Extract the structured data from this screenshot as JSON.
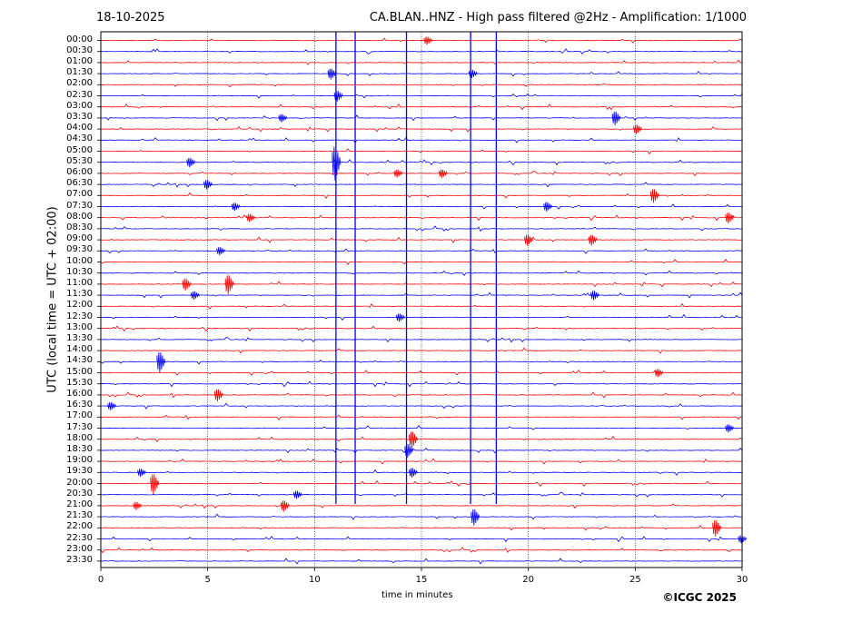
{
  "header": {
    "date": "18-10-2025",
    "title": "CA.BLAN..HNZ - High pass filtered @2Hz - Amplification: 1/1000"
  },
  "footer": {
    "credit": "©ICGC 2025"
  },
  "chart_data": {
    "type": "line",
    "title": "CA.BLAN..HNZ - High pass filtered @2Hz - Amplification: 1/1000",
    "xlabel": "time in minutes",
    "ylabel": "UTC (local time = UTC + 02:00)",
    "xlim": [
      0,
      30
    ],
    "xticks": [
      0,
      5,
      10,
      15,
      20,
      25,
      30
    ],
    "grid_x": [
      5,
      10,
      15,
      20,
      25
    ],
    "yticks": [
      "00:00",
      "00:30",
      "01:00",
      "01:30",
      "02:00",
      "02:30",
      "03:00",
      "03:30",
      "04:00",
      "04:30",
      "05:00",
      "05:30",
      "06:00",
      "06:30",
      "07:00",
      "07:30",
      "08:00",
      "08:30",
      "09:00",
      "09:30",
      "10:00",
      "10:30",
      "11:00",
      "11:30",
      "12:00",
      "12:30",
      "13:00",
      "13:30",
      "14:00",
      "14:30",
      "15:00",
      "15:30",
      "16:00",
      "16:30",
      "17:00",
      "17:30",
      "18:00",
      "18:30",
      "19:00",
      "19:30",
      "20:00",
      "20:30",
      "21:00",
      "21:30",
      "22:00",
      "22:30",
      "23:00",
      "23:30"
    ],
    "trace_colors": [
      "#ff0000",
      "#0000ff"
    ],
    "long_spikes_minutes": [
      11.0,
      11.9,
      14.3,
      17.3,
      18.5
    ],
    "events": [
      {
        "row": "00:00",
        "minute": 15.3,
        "amplitude": 0.6
      },
      {
        "row": "01:30",
        "minute": 10.8,
        "amplitude": 0.8
      },
      {
        "row": "01:30",
        "minute": 17.4,
        "amplitude": 0.6
      },
      {
        "row": "02:30",
        "minute": 11.1,
        "amplitude": 0.8
      },
      {
        "row": "03:30",
        "minute": 8.5,
        "amplitude": 0.6
      },
      {
        "row": "03:30",
        "minute": 24.1,
        "amplitude": 1.0
      },
      {
        "row": "04:00",
        "minute": 25.1,
        "amplitude": 0.7
      },
      {
        "row": "05:30",
        "minute": 4.2,
        "amplitude": 0.7
      },
      {
        "row": "05:30",
        "minute": 11.0,
        "amplitude": 2.5
      },
      {
        "row": "06:00",
        "minute": 13.9,
        "amplitude": 0.6
      },
      {
        "row": "06:00",
        "minute": 16.0,
        "amplitude": 0.6
      },
      {
        "row": "06:30",
        "minute": 5.0,
        "amplitude": 0.7
      },
      {
        "row": "07:00",
        "minute": 25.9,
        "amplitude": 1.0
      },
      {
        "row": "07:30",
        "minute": 6.3,
        "amplitude": 0.6
      },
      {
        "row": "07:30",
        "minute": 20.9,
        "amplitude": 0.7
      },
      {
        "row": "08:00",
        "minute": 7.0,
        "amplitude": 0.6
      },
      {
        "row": "08:00",
        "minute": 29.4,
        "amplitude": 0.8
      },
      {
        "row": "09:00",
        "minute": 20.0,
        "amplitude": 0.8
      },
      {
        "row": "09:00",
        "minute": 23.0,
        "amplitude": 0.8
      },
      {
        "row": "09:30",
        "minute": 5.6,
        "amplitude": 0.6
      },
      {
        "row": "11:00",
        "minute": 4.0,
        "amplitude": 0.9
      },
      {
        "row": "11:00",
        "minute": 6.0,
        "amplitude": 1.4
      },
      {
        "row": "11:30",
        "minute": 4.4,
        "amplitude": 0.6
      },
      {
        "row": "11:30",
        "minute": 23.1,
        "amplitude": 0.7
      },
      {
        "row": "12:30",
        "minute": 14.0,
        "amplitude": 0.6
      },
      {
        "row": "14:30",
        "minute": 2.8,
        "amplitude": 1.5
      },
      {
        "row": "15:00",
        "minute": 26.1,
        "amplitude": 0.6
      },
      {
        "row": "16:00",
        "minute": 5.5,
        "amplitude": 0.9
      },
      {
        "row": "16:30",
        "minute": 0.5,
        "amplitude": 0.6
      },
      {
        "row": "17:30",
        "minute": 29.4,
        "amplitude": 0.6
      },
      {
        "row": "18:00",
        "minute": 14.6,
        "amplitude": 1.2
      },
      {
        "row": "18:30",
        "minute": 14.4,
        "amplitude": 1.0
      },
      {
        "row": "19:30",
        "minute": 1.9,
        "amplitude": 0.6
      },
      {
        "row": "19:30",
        "minute": 14.6,
        "amplitude": 0.7
      },
      {
        "row": "20:00",
        "minute": 2.5,
        "amplitude": 1.5
      },
      {
        "row": "20:30",
        "minute": 9.2,
        "amplitude": 0.6
      },
      {
        "row": "21:00",
        "minute": 1.7,
        "amplitude": 0.6
      },
      {
        "row": "21:00",
        "minute": 8.6,
        "amplitude": 0.8
      },
      {
        "row": "21:30",
        "minute": 17.5,
        "amplitude": 1.2
      },
      {
        "row": "22:00",
        "minute": 28.8,
        "amplitude": 1.2
      },
      {
        "row": "22:30",
        "minute": 30.0,
        "amplitude": 0.6
      }
    ]
  }
}
